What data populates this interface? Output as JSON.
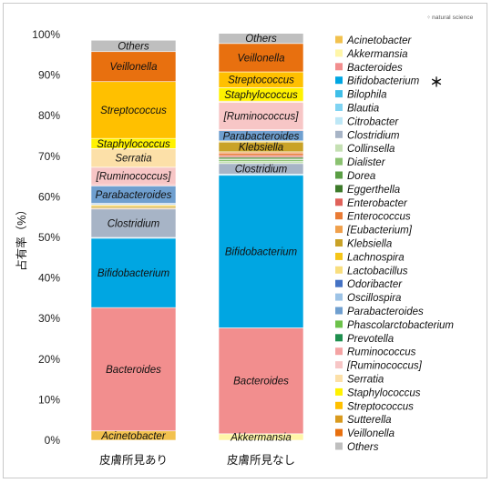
{
  "brand": "natural science",
  "chart_data": {
    "type": "bar",
    "stacked": true,
    "ylabel": "占有率（%）",
    "ylim": [
      0,
      100
    ],
    "yticks": [
      "0%",
      "10%",
      "20%",
      "30%",
      "40%",
      "50%",
      "60%",
      "70%",
      "80%",
      "90%",
      "100%"
    ],
    "categories": [
      "皮膚所見あり",
      "皮膚所見なし"
    ],
    "grid": false,
    "legend_position": "right",
    "significance_marker": "＊",
    "significant_taxon": "Bifidobacterium",
    "series": [
      {
        "name": "Acinetobacter",
        "color": "#F2C14E",
        "values": [
          2.3,
          0.0
        ]
      },
      {
        "name": "Akkermansia",
        "color": "#FFF6A8",
        "values": [
          0.0,
          1.6
        ]
      },
      {
        "name": "Bacteroides",
        "color": "#F28E8E",
        "values": [
          30.4,
          26.1
        ]
      },
      {
        "name": "Bifidobacterium",
        "color": "#00A6E2",
        "values": [
          17.1,
          37.6
        ]
      },
      {
        "name": "Bilophila",
        "color": "#3FBFE8",
        "values": [
          0.0,
          0.0
        ]
      },
      {
        "name": "Blautia",
        "color": "#7FD3F2",
        "values": [
          0.2,
          0.3
        ]
      },
      {
        "name": "Citrobacter",
        "color": "#BDE7F6",
        "values": [
          0.0,
          0.0
        ]
      },
      {
        "name": "Clostridium",
        "color": "#A7B4C6",
        "values": [
          7.0,
          2.6
        ]
      },
      {
        "name": "Collinsella",
        "color": "#C5E0B3",
        "values": [
          0.0,
          0.5
        ]
      },
      {
        "name": "Dialister",
        "color": "#8BC271",
        "values": [
          0.0,
          0.5
        ]
      },
      {
        "name": "Dorea",
        "color": "#5A9E44",
        "values": [
          0.0,
          0.3
        ]
      },
      {
        "name": "Eggerthella",
        "color": "#3D7A2A",
        "values": [
          0.0,
          0.3
        ]
      },
      {
        "name": "Enterobacter",
        "color": "#E0625A",
        "values": [
          0.0,
          0.4
        ]
      },
      {
        "name": "Enterococcus",
        "color": "#E97B35",
        "values": [
          0.2,
          0.6
        ]
      },
      {
        "name": "[Eubacterium]",
        "color": "#F0A04B",
        "values": [
          0.0,
          0.3
        ]
      },
      {
        "name": "Klebsiella",
        "color": "#C9A227",
        "values": [
          0.4,
          2.4
        ]
      },
      {
        "name": "Lachnospira",
        "color": "#F5C518",
        "values": [
          0.3,
          0.0
        ]
      },
      {
        "name": "Lactobacillus",
        "color": "#F8DE7E",
        "values": [
          0.2,
          0.3
        ]
      },
      {
        "name": "Odoribacter",
        "color": "#4472C4",
        "values": [
          0.0,
          0.0
        ]
      },
      {
        "name": "Oscillospira",
        "color": "#9DC3E6",
        "values": [
          0.3,
          0.0
        ]
      },
      {
        "name": "Parabacteroides",
        "color": "#6F9FCF",
        "values": [
          4.3,
          2.5
        ]
      },
      {
        "name": "Phascolarctobacterium",
        "color": "#6CC24A",
        "values": [
          0.0,
          0.0
        ]
      },
      {
        "name": "Prevotella",
        "color": "#1E8F4E",
        "values": [
          0.0,
          0.0
        ]
      },
      {
        "name": "Ruminococcus",
        "color": "#F4A3A3",
        "values": [
          0.3,
          0.3
        ]
      },
      {
        "name": "[Ruminococcus]",
        "color": "#F7C6C6",
        "values": [
          4.3,
          6.7
        ]
      },
      {
        "name": "Serratia",
        "color": "#FCE0A8",
        "values": [
          4.6,
          0.3
        ]
      },
      {
        "name": "Staphylococcus",
        "color": "#FFF200",
        "values": [
          2.5,
          3.3
        ]
      },
      {
        "name": "Streptococcus",
        "color": "#FFC000",
        "values": [
          14.0,
          3.9
        ]
      },
      {
        "name": "Sutterella",
        "color": "#D99A1E",
        "values": [
          0.0,
          0.0
        ]
      },
      {
        "name": "Veillonella",
        "color": "#E8700F",
        "values": [
          7.4,
          7.0
        ]
      },
      {
        "name": "Others",
        "color": "#BFBFBF",
        "values": [
          2.8,
          2.5
        ]
      }
    ],
    "segment_labels": [
      [
        "Acinetobacter",
        "Bacteroides",
        "Bifidobacterium",
        "Clostridium",
        "Parabacteroides",
        "[Ruminococcus]",
        "Serratia",
        "Staphylococcus",
        "Streptococcus",
        "Veillonella",
        "Others"
      ],
      [
        "Akkermansia",
        "Bacteroides",
        "Bifidobacterium",
        "Clostridium",
        "Klebsiella",
        "Parabacteroides",
        "[Ruminococcus]",
        "Staphylococcus",
        "Streptococcus",
        "Veillonella",
        "Others"
      ]
    ]
  }
}
